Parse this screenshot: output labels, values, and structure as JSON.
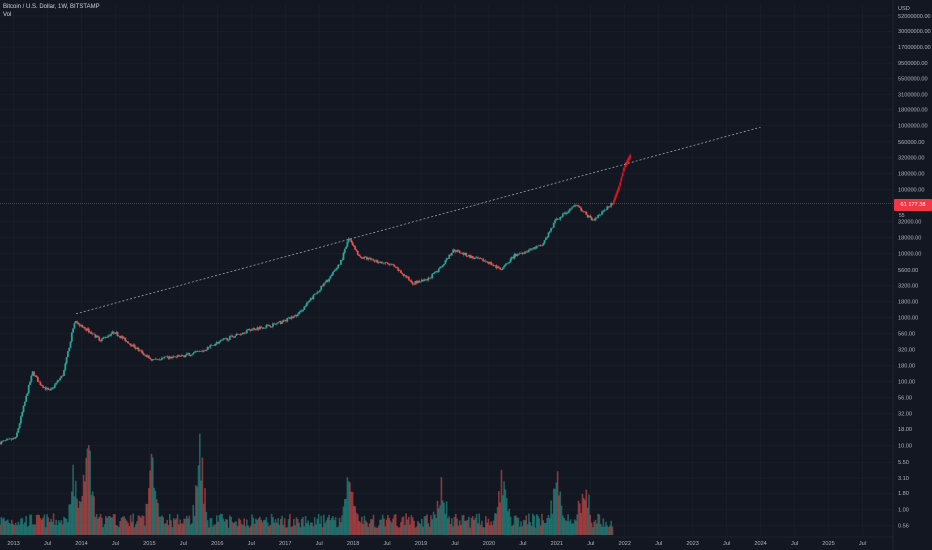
{
  "header": {
    "symbol_line": "Bitcoin / U.S. Dollar, 1W, BITSTAMP",
    "volume_label": "Vol"
  },
  "price_scale": {
    "currency": "USD",
    "labels": [
      "52000000.00",
      "30000000.00",
      "17000000.00",
      "9500000.00",
      "5500000.00",
      "3100000.00",
      "1800000.00",
      "1000000.00",
      "560000.00",
      "320000.00",
      "180000.00",
      "100000.00",
      "32000.00",
      "18000.00",
      "10000.00",
      "5600.00",
      "3200.00",
      "1800.00",
      "1000.00",
      "560.00",
      "320.00",
      "180.00",
      "100.00",
      "56.00",
      "32.00",
      "18.00",
      "10.00",
      "5.50",
      "3.10",
      "1.80",
      "1.00",
      "0.56"
    ],
    "current_price_label": "61 177.38",
    "current_price_sub": "55"
  },
  "time_axis": {
    "labels": [
      "2013",
      "Jul",
      "2014",
      "Jul",
      "2015",
      "Jul",
      "2016",
      "Jul",
      "2017",
      "Jul",
      "2018",
      "Jul",
      "2019",
      "Jul",
      "2020",
      "Jul",
      "2021",
      "Jul",
      "2022",
      "Jul",
      "2023",
      "Jul",
      "2024",
      "Jul",
      "2025",
      "Jul"
    ]
  },
  "colors": {
    "background": "#131722",
    "up": "#26a69a",
    "down": "#ef5350",
    "projection": "#e0141e",
    "grid": "#1e222d",
    "text": "#b2b5be",
    "price_line": "#f23645"
  },
  "chart_data": {
    "type": "candlestick",
    "title": "Bitcoin / U.S. Dollar, 1W, BITSTAMP",
    "scale": "log",
    "ylim": [
      0.4,
      80000000
    ],
    "xlim": [
      2012.8,
      2025.95
    ],
    "current_price": 61177.38,
    "price_path": [
      [
        2012.8,
        11
      ],
      [
        2013.05,
        13
      ],
      [
        2013.25,
        90
      ],
      [
        2013.3,
        140
      ],
      [
        2013.4,
        95
      ],
      [
        2013.55,
        70
      ],
      [
        2013.75,
        130
      ],
      [
        2013.92,
        900
      ],
      [
        2014.0,
        750
      ],
      [
        2014.1,
        650
      ],
      [
        2014.3,
        450
      ],
      [
        2014.5,
        600
      ],
      [
        2014.8,
        350
      ],
      [
        2015.05,
        220
      ],
      [
        2015.5,
        250
      ],
      [
        2015.8,
        300
      ],
      [
        2016.0,
        400
      ],
      [
        2016.5,
        650
      ],
      [
        2016.9,
        800
      ],
      [
        2017.2,
        1100
      ],
      [
        2017.5,
        2600
      ],
      [
        2017.7,
        4500
      ],
      [
        2017.85,
        8000
      ],
      [
        2017.96,
        18000
      ],
      [
        2018.1,
        9000
      ],
      [
        2018.3,
        8000
      ],
      [
        2018.6,
        6500
      ],
      [
        2018.9,
        3500
      ],
      [
        2019.1,
        3800
      ],
      [
        2019.3,
        6000
      ],
      [
        2019.5,
        11500
      ],
      [
        2019.8,
        8500
      ],
      [
        2020.0,
        7500
      ],
      [
        2020.2,
        5500
      ],
      [
        2020.4,
        9500
      ],
      [
        2020.8,
        13500
      ],
      [
        2021.0,
        33000
      ],
      [
        2021.3,
        58000
      ],
      [
        2021.55,
        33000
      ],
      [
        2021.7,
        45000
      ],
      [
        2021.82,
        61177
      ]
    ],
    "projection": [
      [
        2021.84,
        65000
      ],
      [
        2021.92,
        110000
      ],
      [
        2022.0,
        230000
      ],
      [
        2022.08,
        330000
      ]
    ],
    "trendline": [
      [
        2013.92,
        1150
      ],
      [
        2017.96,
        19500
      ],
      [
        2024.0,
        950000
      ]
    ],
    "horizontal_line": 61177.38,
    "volume_peaks": [
      [
        2013.9,
        0.3
      ],
      [
        2014.1,
        0.45
      ],
      [
        2015.05,
        0.38
      ],
      [
        2015.75,
        0.4
      ],
      [
        2017.95,
        0.32
      ],
      [
        2019.3,
        0.25
      ],
      [
        2020.2,
        0.3
      ],
      [
        2021.0,
        0.3
      ],
      [
        2021.4,
        0.25
      ]
    ]
  }
}
